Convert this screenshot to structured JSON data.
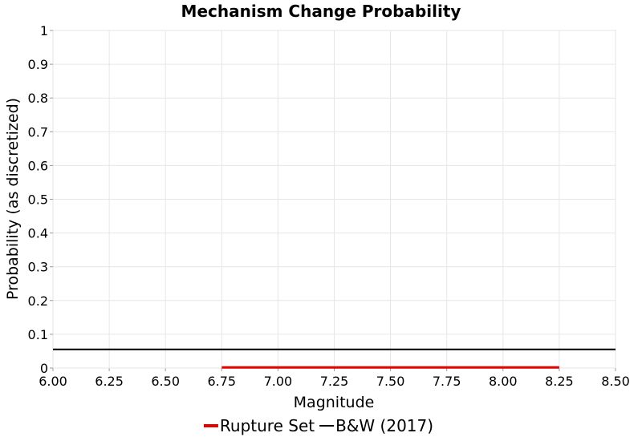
{
  "chart_data": {
    "type": "line",
    "title": "Mechanism Change Probability",
    "xlabel": "Magnitude",
    "ylabel": "Probability (as discretized)",
    "xlim": [
      6.0,
      8.5
    ],
    "ylim": [
      0,
      1
    ],
    "x_ticks": [
      "6.00",
      "6.25",
      "6.50",
      "6.75",
      "7.00",
      "7.25",
      "7.50",
      "7.75",
      "8.00",
      "8.25",
      "8.50"
    ],
    "y_ticks": [
      "0",
      "0.1",
      "0.2",
      "0.3",
      "0.4",
      "0.5",
      "0.6",
      "0.7",
      "0.8",
      "0.9",
      "1"
    ],
    "grid": true,
    "legend_position": "bottom",
    "series": [
      {
        "name": "Rupture Set",
        "color": "#e60000",
        "x": [
          6.75,
          8.25
        ],
        "y": [
          0.002,
          0.002
        ]
      },
      {
        "name": "B&W (2017)",
        "color": "#000000",
        "x": [
          6.0,
          8.5
        ],
        "y": [
          0.055,
          0.055
        ]
      }
    ]
  }
}
